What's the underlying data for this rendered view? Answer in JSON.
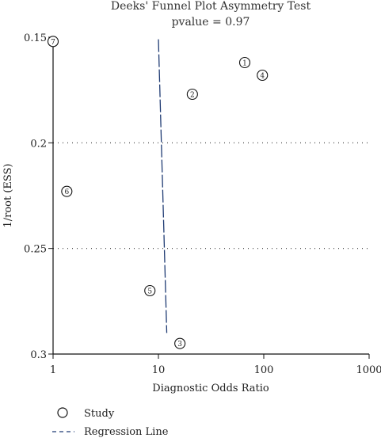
{
  "chart_data": {
    "type": "scatter",
    "title": "Deeks' Funnel Plot Asymmetry Test",
    "subtitle": "pvalue = 0.97",
    "xlabel": "Diagnostic Odds Ratio",
    "ylabel": "1/root (ESS)",
    "xscale": "log",
    "yaxis_reversed": true,
    "xlim": [
      1,
      1000
    ],
    "ylim": [
      0.15,
      0.3
    ],
    "xticks": [
      1,
      10,
      100,
      1000
    ],
    "xtick_labels": [
      "1",
      "10",
      "100",
      "1000"
    ],
    "yticks": [
      0.15,
      0.2,
      0.25,
      0.3
    ],
    "ytick_labels": [
      "0.15",
      "0.2",
      "0.25",
      "0.3"
    ],
    "reference_lines_y": [
      0.2,
      0.25
    ],
    "grid": false,
    "legend_position": "bottom-left",
    "series": [
      {
        "name": "Study",
        "points": [
          {
            "label": "1",
            "x": 66,
            "y": 0.162
          },
          {
            "label": "2",
            "x": 21,
            "y": 0.177
          },
          {
            "label": "3",
            "x": 16,
            "y": 0.295
          },
          {
            "label": "4",
            "x": 97,
            "y": 0.168
          },
          {
            "label": "5",
            "x": 8.3,
            "y": 0.27
          },
          {
            "label": "6",
            "x": 1.35,
            "y": 0.223
          },
          {
            "label": "7",
            "x": 1,
            "y": 0.152
          }
        ]
      },
      {
        "name": "Regression Line",
        "line": [
          {
            "x": 10,
            "y": 0.151
          },
          {
            "x": 12,
            "y": 0.29
          }
        ]
      }
    ]
  },
  "colors": {
    "regression_line": "#1f3b73",
    "axis": "#111111",
    "reference_line": "#333333"
  }
}
